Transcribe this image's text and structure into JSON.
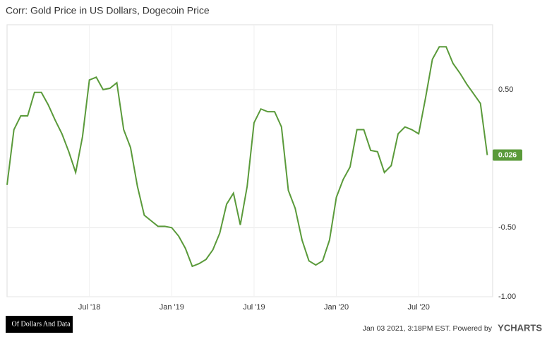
{
  "chart_data": {
    "type": "line",
    "title": "Corr: Gold Price in US Dollars, Dogecoin Price",
    "categories": [
      null,
      null,
      null,
      null,
      null,
      null,
      null,
      null,
      null,
      null,
      null,
      null,
      "Jul '18",
      null,
      null,
      null,
      null,
      null,
      null,
      null,
      null,
      null,
      null,
      null,
      "Jan '19",
      null,
      null,
      null,
      null,
      null,
      null,
      null,
      null,
      null,
      null,
      null,
      "Jul '19",
      null,
      null,
      null,
      null,
      null,
      null,
      null,
      null,
      null,
      null,
      null,
      "Jan '20",
      null,
      null,
      null,
      null,
      null,
      null,
      null,
      null,
      null,
      null,
      null,
      "Jul '20",
      null,
      null,
      null,
      null,
      null,
      null,
      null,
      null,
      null,
      null
    ],
    "series": [
      {
        "color": "#5a9a3a",
        "values": [
          -0.19,
          0.21,
          0.31,
          0.31,
          0.48,
          0.48,
          0.39,
          0.28,
          0.18,
          0.05,
          -0.1,
          0.16,
          0.57,
          0.59,
          0.5,
          0.51,
          0.55,
          0.21,
          0.08,
          -0.2,
          -0.41,
          -0.45,
          -0.49,
          -0.49,
          -0.5,
          -0.56,
          -0.65,
          -0.78,
          -0.76,
          -0.73,
          -0.66,
          -0.54,
          -0.33,
          -0.25,
          -0.48,
          -0.2,
          0.26,
          0.36,
          0.34,
          0.34,
          0.23,
          -0.23,
          -0.36,
          -0.59,
          -0.74,
          -0.77,
          -0.74,
          -0.59,
          -0.28,
          -0.15,
          -0.06,
          0.21,
          0.21,
          0.06,
          0.05,
          -0.1,
          -0.05,
          0.18,
          0.23,
          0.21,
          0.18,
          0.44,
          0.72,
          0.81,
          0.81,
          0.69,
          0.62,
          0.54,
          0.47,
          0.4,
          0.026
        ]
      }
    ],
    "ylim": [
      -1.0,
      0.97
    ],
    "yticks": [
      {
        "value": 0.5,
        "label": "0.50"
      },
      {
        "value": -0.5,
        "label": "-0.50"
      },
      {
        "value": -1.0,
        "label": "-1.00"
      }
    ],
    "grid": true,
    "logo": "Of Dollars And Data",
    "source": "Jan 03 2021, 3:18PM EST. Powered by",
    "brand": "YCHARTS"
  }
}
